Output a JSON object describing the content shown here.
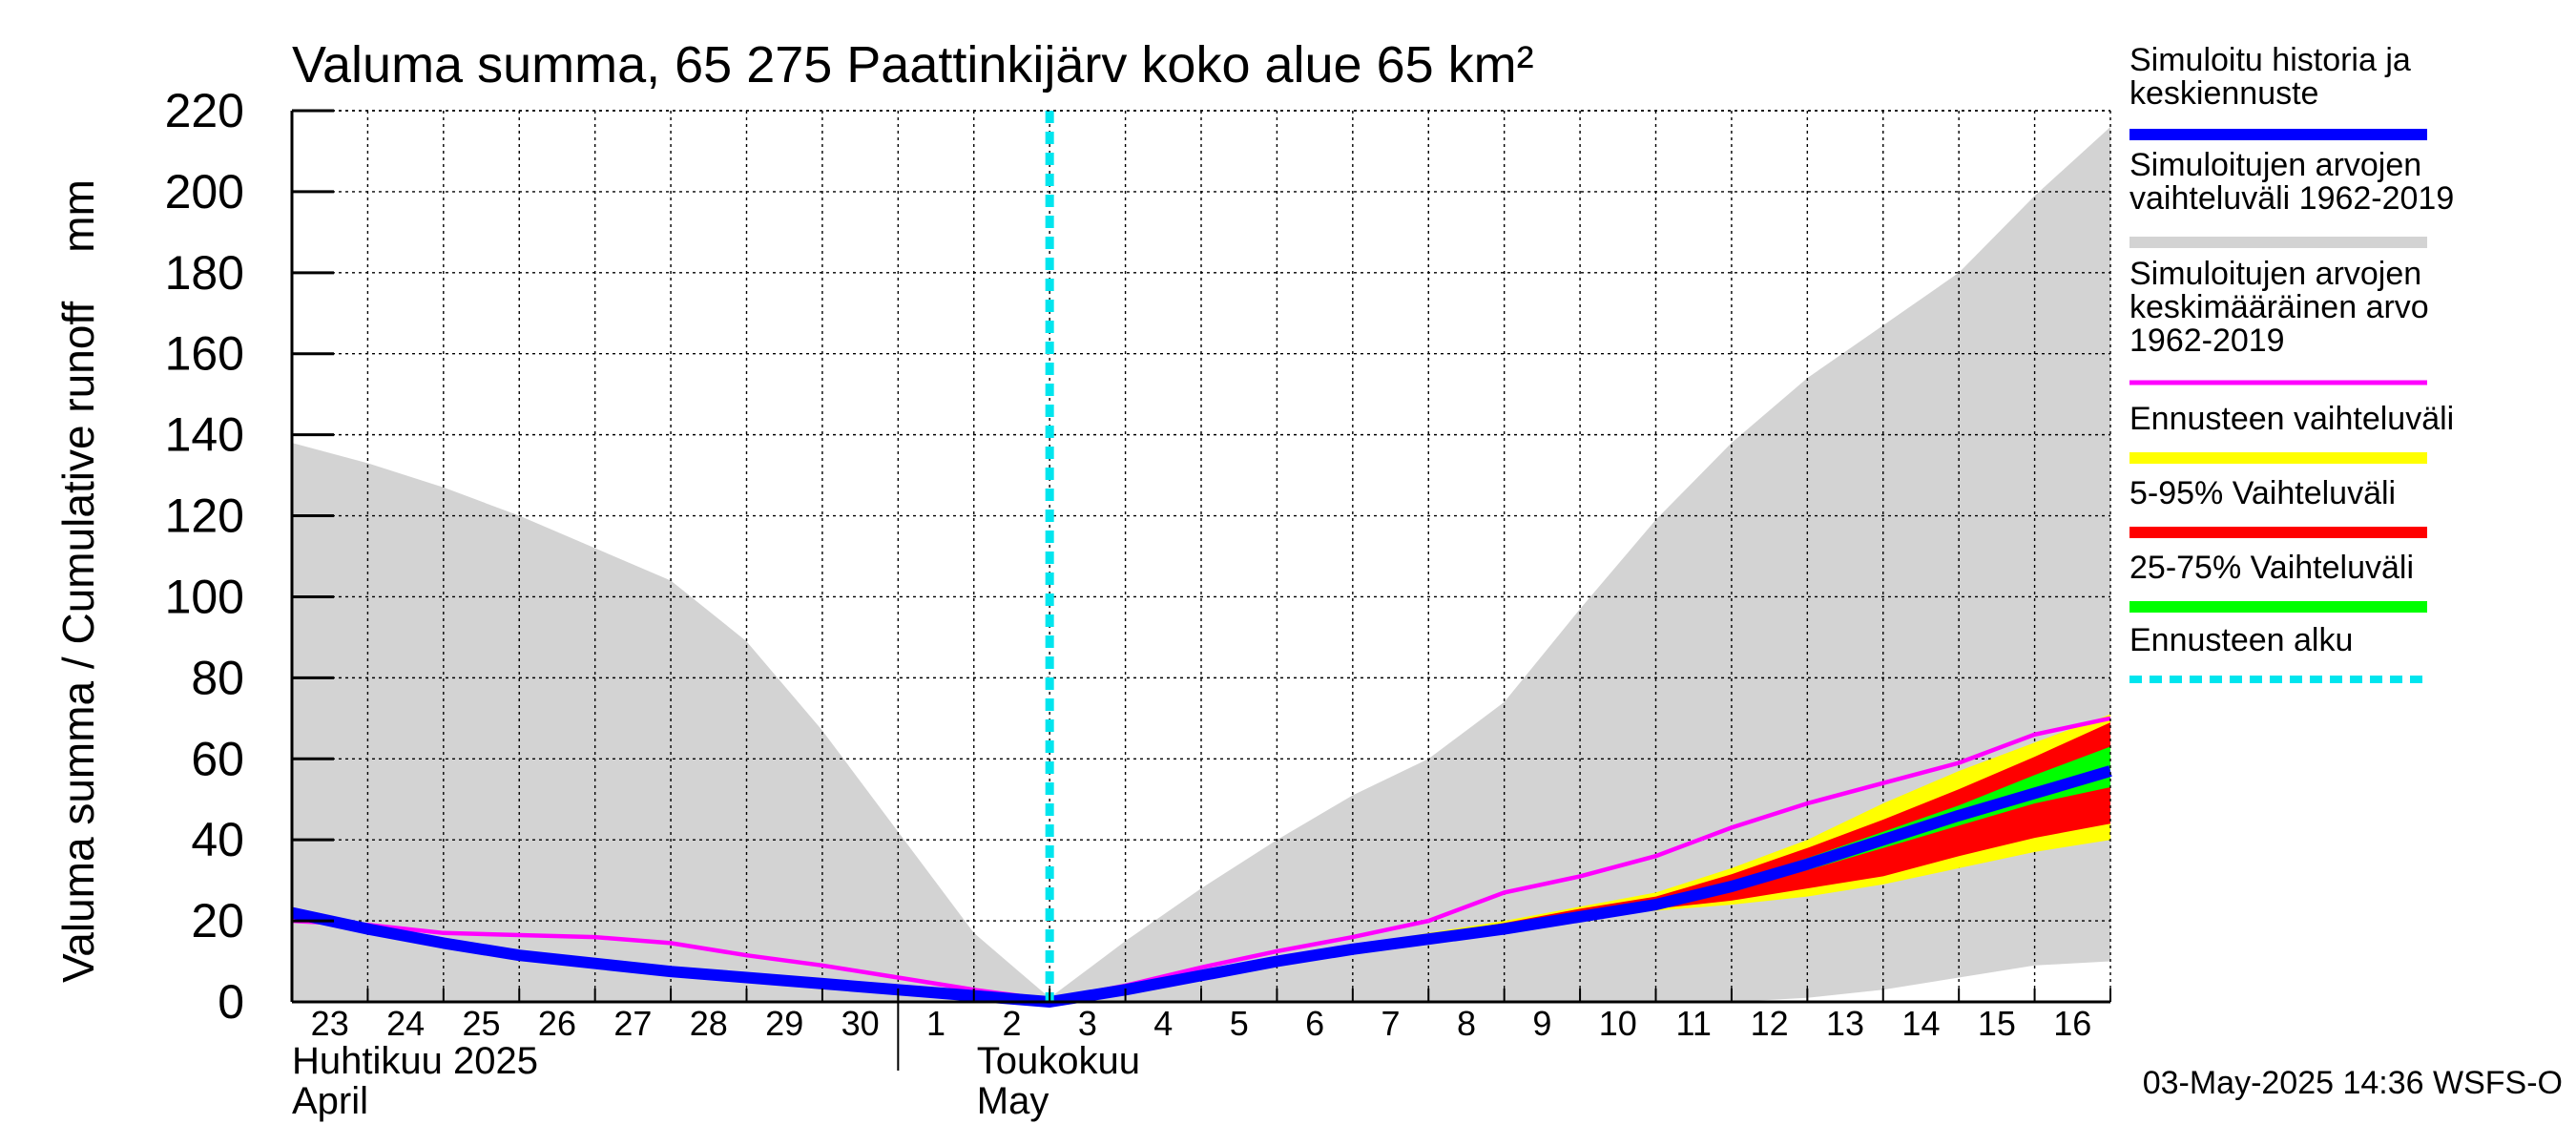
{
  "chart_data": {
    "type": "area",
    "title": "Valuma summa, 65 275 Paattinkijärv koko alue 65 km²",
    "ylabel": "Valuma summa / Cumulative runoff    mm",
    "ylim": [
      0,
      220
    ],
    "yticks": [
      0,
      20,
      40,
      60,
      80,
      100,
      120,
      140,
      160,
      180,
      200,
      220
    ],
    "x_start": 23,
    "x_end": 47,
    "day_labels": [
      "23",
      "24",
      "25",
      "26",
      "27",
      "28",
      "29",
      "30",
      "1",
      "2",
      "3",
      "4",
      "5",
      "6",
      "7",
      "8",
      "9",
      "10",
      "11",
      "12",
      "13",
      "14",
      "15",
      "16"
    ],
    "months": [
      {
        "fi": "Huhtikuu  2025",
        "en": "April",
        "start_day": 23
      },
      {
        "fi": "Toukokuu",
        "en": "May",
        "start_day": 32
      }
    ],
    "month_divider_day": 31,
    "forecast_start_day": 33,
    "footer": "03-May-2025 14:36 WSFS-O",
    "colors": {
      "hist_range": "#d3d3d3",
      "mean": "#ff00ff",
      "sim": "#0000ff",
      "forecast_range": "#ffff00",
      "p5_95": "#ff0000",
      "p25_75": "#00ff00",
      "forecast_start": "#00e5ee"
    },
    "legend": [
      {
        "label": "Simuloitu historia ja\nkeskiennuste",
        "color": "#0000ff",
        "style": "solid"
      },
      {
        "label": "Simuloitujen arvojen\nvaihteluväli 1962-2019",
        "color": "#d3d3d3",
        "style": "solid"
      },
      {
        "label": "Simuloitujen arvojen\nkeskimääräinen arvo\n   1962-2019",
        "color": "#ff00ff",
        "style": "thin"
      },
      {
        "label": "Ennusteen vaihteluväli",
        "color": "#ffff00",
        "style": "solid"
      },
      {
        "label": "5-95% Vaihteluväli",
        "color": "#ff0000",
        "style": "solid"
      },
      {
        "label": "25-75% Vaihteluväli",
        "color": "#00ff00",
        "style": "solid"
      },
      {
        "label": "Ennusteen alku",
        "color": "#00e5ee",
        "style": "dashed"
      }
    ],
    "series": {
      "hist_range": {
        "x": [
          23,
          24,
          25,
          26,
          27,
          28,
          29,
          30,
          31,
          32,
          33,
          34,
          35,
          36,
          37,
          38,
          39,
          40,
          41,
          42,
          43,
          44,
          45,
          46,
          47
        ],
        "upper": [
          138,
          133,
          127,
          120,
          112,
          104,
          89,
          67,
          42,
          17,
          1,
          15,
          28,
          40,
          51,
          60,
          74,
          97,
          119,
          138,
          154,
          167,
          180,
          199,
          216
        ],
        "lower": [
          0,
          0,
          0,
          0,
          0,
          0,
          0,
          0,
          0,
          0,
          0,
          0,
          0,
          0,
          0,
          0,
          0,
          0,
          0,
          0,
          1,
          3,
          6,
          9,
          10
        ]
      },
      "mean": {
        "x": [
          23,
          24,
          25,
          26,
          27,
          28,
          29,
          30,
          31,
          32,
          33,
          34,
          35,
          36,
          37,
          38,
          39,
          40,
          41,
          42,
          43,
          44,
          45,
          46,
          47
        ],
        "y": [
          20,
          19,
          17,
          16.5,
          16,
          14.5,
          11.5,
          9,
          6,
          3,
          0.5,
          4,
          8.5,
          12.5,
          16,
          20,
          27,
          31,
          36,
          43,
          49,
          54,
          59,
          66,
          70
        ]
      },
      "sim": {
        "x": [
          23,
          24,
          25,
          26,
          27,
          28,
          29,
          30,
          31,
          32,
          33,
          34,
          35,
          36,
          37,
          38,
          39,
          40,
          41,
          42,
          43,
          44,
          45,
          46,
          47
        ],
        "y": [
          22,
          18,
          14.5,
          11.5,
          9.5,
          7.5,
          6,
          4.5,
          3,
          1.5,
          0,
          3,
          6.5,
          10,
          13,
          15.5,
          18,
          21,
          24,
          28.5,
          34,
          40,
          46,
          51.5,
          57
        ]
      },
      "forecast_range": {
        "x": [
          33,
          34,
          35,
          36,
          37,
          38,
          39,
          40,
          41,
          42,
          43,
          44,
          45,
          46,
          47
        ],
        "upper": [
          0,
          3,
          7,
          10.5,
          14,
          17,
          20,
          23.5,
          27,
          33,
          40,
          49,
          57,
          64,
          71
        ],
        "lower": [
          0,
          3,
          6.5,
          10,
          12.5,
          15,
          17.5,
          20.5,
          22.5,
          24,
          26,
          29,
          33,
          37,
          40
        ]
      },
      "p5_95": {
        "x": [
          33,
          34,
          35,
          36,
          37,
          38,
          39,
          40,
          41,
          42,
          43,
          44,
          45,
          46,
          47
        ],
        "upper": [
          0,
          3,
          7,
          10.5,
          14,
          16.5,
          19.5,
          23,
          26,
          31.5,
          38,
          45,
          52.5,
          60.5,
          69
        ],
        "lower": [
          0,
          3,
          6.5,
          10,
          12.5,
          15,
          18,
          21,
          23,
          25,
          28,
          31,
          36,
          40.5,
          44
        ]
      },
      "p25_75": {
        "x": [
          33,
          34,
          35,
          36,
          37,
          38,
          39,
          40,
          41,
          42,
          43,
          44,
          45,
          46,
          47
        ],
        "upper": [
          0,
          3,
          6.8,
          10.3,
          13.3,
          16,
          18.8,
          22,
          25,
          29.5,
          35.5,
          42,
          48.5,
          56,
          63
        ],
        "lower": [
          0,
          3,
          6.5,
          10,
          12.8,
          15.3,
          18,
          21,
          23.5,
          27.5,
          32.5,
          38,
          43.5,
          49,
          53
        ]
      }
    }
  }
}
